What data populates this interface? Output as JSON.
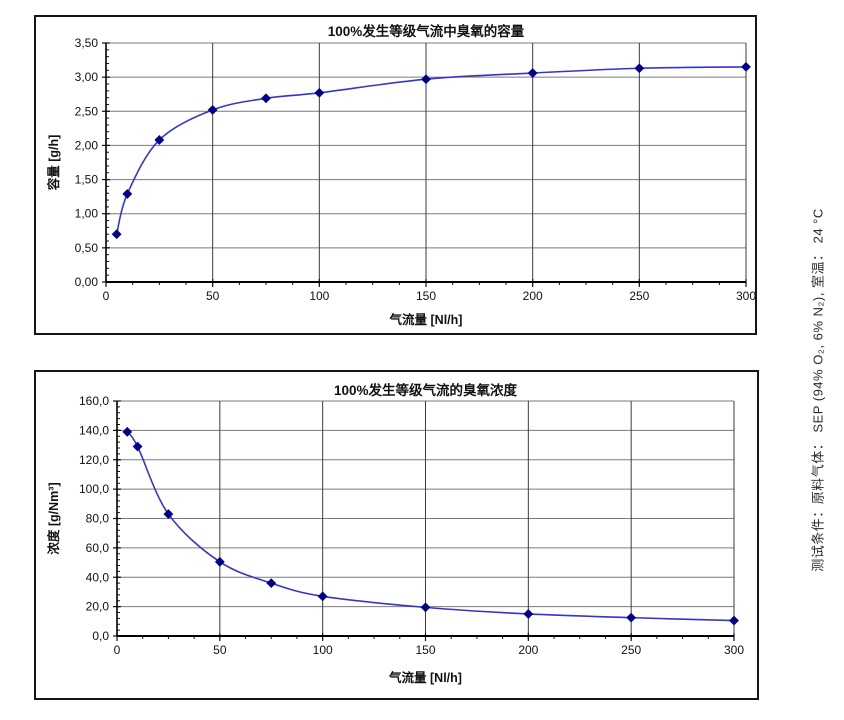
{
  "page": {
    "background": "#ffffff"
  },
  "side_note": "测试条件：原料气体：  SEP (94% O₂, 6% N₂), 室温：  24 °C",
  "chart_data": [
    {
      "type": "line",
      "title": "100%发生等级气流中臭氧的容量",
      "xlabel": "气流量 [Nl/h]",
      "ylabel": "容量 [g/h]",
      "x": [
        5,
        10,
        25,
        50,
        75,
        100,
        150,
        200,
        250,
        300
      ],
      "y": [
        0.7,
        1.29,
        2.08,
        2.52,
        2.69,
        2.77,
        2.97,
        3.06,
        3.13,
        3.15
      ],
      "xlim": [
        0,
        300
      ],
      "ylim": [
        0,
        3.5
      ],
      "xticks": [
        0,
        50,
        100,
        150,
        200,
        250,
        300
      ],
      "xtick_labels": [
        "0",
        "50",
        "100",
        "150",
        "200",
        "250",
        "300"
      ],
      "yticks": [
        0,
        0.5,
        1,
        1.5,
        2,
        2.5,
        3,
        3.5
      ],
      "ytick_labels": [
        "0,00",
        "0,50",
        "1,00",
        "1,50",
        "2,00",
        "2,50",
        "3,00",
        "3,50"
      ],
      "x_minor_step": 12.5,
      "y_minor_step": 0.1,
      "grid": true,
      "legend": false,
      "line_color": "#3535c9",
      "marker_color": "#00008b",
      "marker": "diamond",
      "grid_color_h": "#7a7a7a",
      "grid_color_v": "#3c3c3c"
    },
    {
      "type": "line",
      "title": "100%发生等级气流的臭氧浓度",
      "xlabel": "气流量 [Nl/h]",
      "ylabel": "浓度 [g/Nm³]",
      "x": [
        5,
        10,
        25,
        50,
        75,
        100,
        150,
        200,
        250,
        300
      ],
      "y": [
        139,
        129,
        83,
        50.5,
        36,
        27,
        19.5,
        15,
        12.5,
        10.5
      ],
      "xlim": [
        0,
        300
      ],
      "ylim": [
        0,
        160
      ],
      "xticks": [
        0,
        50,
        100,
        150,
        200,
        250,
        300
      ],
      "xtick_labels": [
        "0",
        "50",
        "100",
        "150",
        "200",
        "250",
        "300"
      ],
      "yticks": [
        0,
        20,
        40,
        60,
        80,
        100,
        120,
        140,
        160
      ],
      "ytick_labels": [
        "0,0",
        "20,0",
        "40,0",
        "60,0",
        "80,0",
        "100,0",
        "120,0",
        "140,0",
        "160,0"
      ],
      "x_minor_step": 12.5,
      "y_minor_step": 4,
      "grid": true,
      "legend": false,
      "line_color": "#3535c9",
      "marker_color": "#00008b",
      "marker": "diamond",
      "grid_color_h": "#7a7a7a",
      "grid_color_v": "#3c3c3c"
    }
  ]
}
